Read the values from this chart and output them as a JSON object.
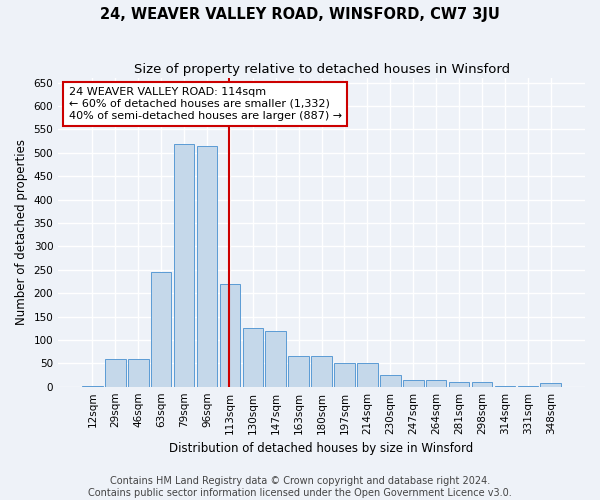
{
  "title": "24, WEAVER VALLEY ROAD, WINSFORD, CW7 3JU",
  "subtitle": "Size of property relative to detached houses in Winsford",
  "xlabel": "Distribution of detached houses by size in Winsford",
  "ylabel": "Number of detached properties",
  "categories": [
    "12sqm",
    "29sqm",
    "46sqm",
    "63sqm",
    "79sqm",
    "96sqm",
    "113sqm",
    "130sqm",
    "147sqm",
    "163sqm",
    "180sqm",
    "197sqm",
    "214sqm",
    "230sqm",
    "247sqm",
    "264sqm",
    "281sqm",
    "298sqm",
    "314sqm",
    "331sqm",
    "348sqm"
  ],
  "values": [
    2,
    60,
    60,
    245,
    520,
    515,
    220,
    125,
    120,
    65,
    65,
    50,
    50,
    25,
    15,
    15,
    10,
    10,
    2,
    2,
    8
  ],
  "bar_color": "#c5d8ea",
  "bar_edge_color": "#5b9bd5",
  "vline_x_index": 6,
  "vline_color": "#cc0000",
  "annotation_text": "24 WEAVER VALLEY ROAD: 114sqm\n← 60% of detached houses are smaller (1,332)\n40% of semi-detached houses are larger (887) →",
  "annotation_box_color": "white",
  "annotation_box_edge": "#cc0000",
  "ylim": [
    0,
    660
  ],
  "yticks": [
    0,
    50,
    100,
    150,
    200,
    250,
    300,
    350,
    400,
    450,
    500,
    550,
    600,
    650
  ],
  "footer1": "Contains HM Land Registry data © Crown copyright and database right 2024.",
  "footer2": "Contains public sector information licensed under the Open Government Licence v3.0.",
  "background_color": "#eef2f8",
  "grid_color": "#ffffff",
  "title_fontsize": 10.5,
  "subtitle_fontsize": 9.5,
  "axis_label_fontsize": 8.5,
  "tick_fontsize": 7.5,
  "annotation_fontsize": 8,
  "footer_fontsize": 7
}
